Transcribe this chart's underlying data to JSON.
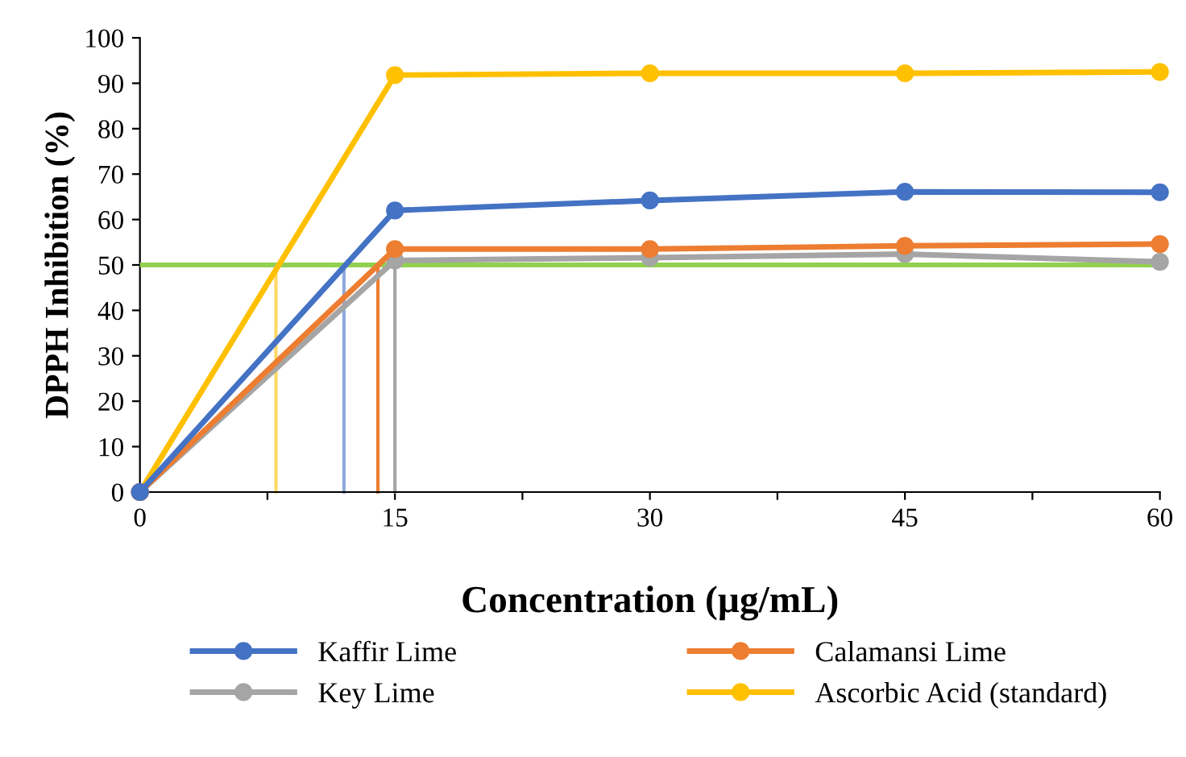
{
  "chart_data": {
    "type": "line",
    "xlabel": "Concentration (µg/mL)",
    "ylabel": "DPPH Inhibition (%)",
    "x": [
      0,
      15,
      30,
      45,
      60
    ],
    "series": [
      {
        "name": "Kaffir Lime",
        "color": "#4472c4",
        "values": [
          0,
          62,
          64.2,
          66.1,
          66
        ]
      },
      {
        "name": "Calamansi Lime",
        "color": "#ed7d31",
        "values": [
          0,
          53.5,
          53.5,
          54.2,
          54.6
        ]
      },
      {
        "name": "Key Lime",
        "color": "#a5a5a5",
        "values": [
          0,
          51,
          51.6,
          52.4,
          50.7
        ]
      },
      {
        "name": "Ascorbic Acid (standard)",
        "color": "#ffc000",
        "values": [
          0,
          91.8,
          92.2,
          92.2,
          92.5
        ]
      },
      {
        "color": "#ffd966",
        "x": [
          8,
          8
        ],
        "values": [
          0,
          50
        ],
        "marker": "none"
      },
      {
        "color": "#8faadc",
        "x": [
          12,
          12
        ],
        "values": [
          0,
          50
        ],
        "marker": "none"
      },
      {
        "color": "#ed7d31",
        "x": [
          14,
          14
        ],
        "values": [
          0,
          50
        ],
        "marker": "none"
      },
      {
        "color": "#a5a5a5",
        "x": [
          15,
          15
        ],
        "values": [
          0,
          50
        ],
        "marker": "none"
      }
    ],
    "ref_lines": [
      {
        "axis": "y",
        "value": 50,
        "color": "#92d050"
      }
    ],
    "xlim": [
      0,
      60
    ],
    "xticks": [
      0,
      {
        "value": 7.5,
        "label": null
      },
      15,
      {
        "value": 22.5,
        "label": null
      },
      30,
      {
        "value": 37.5,
        "label": null
      },
      45,
      {
        "value": 52.5,
        "label": null
      },
      60
    ],
    "ylim": [
      0,
      100
    ],
    "yticks": [
      0,
      10,
      20,
      30,
      40,
      50,
      60,
      70,
      80,
      90,
      100
    ],
    "marker": "circle",
    "grid": false,
    "legend": "bottom"
  }
}
